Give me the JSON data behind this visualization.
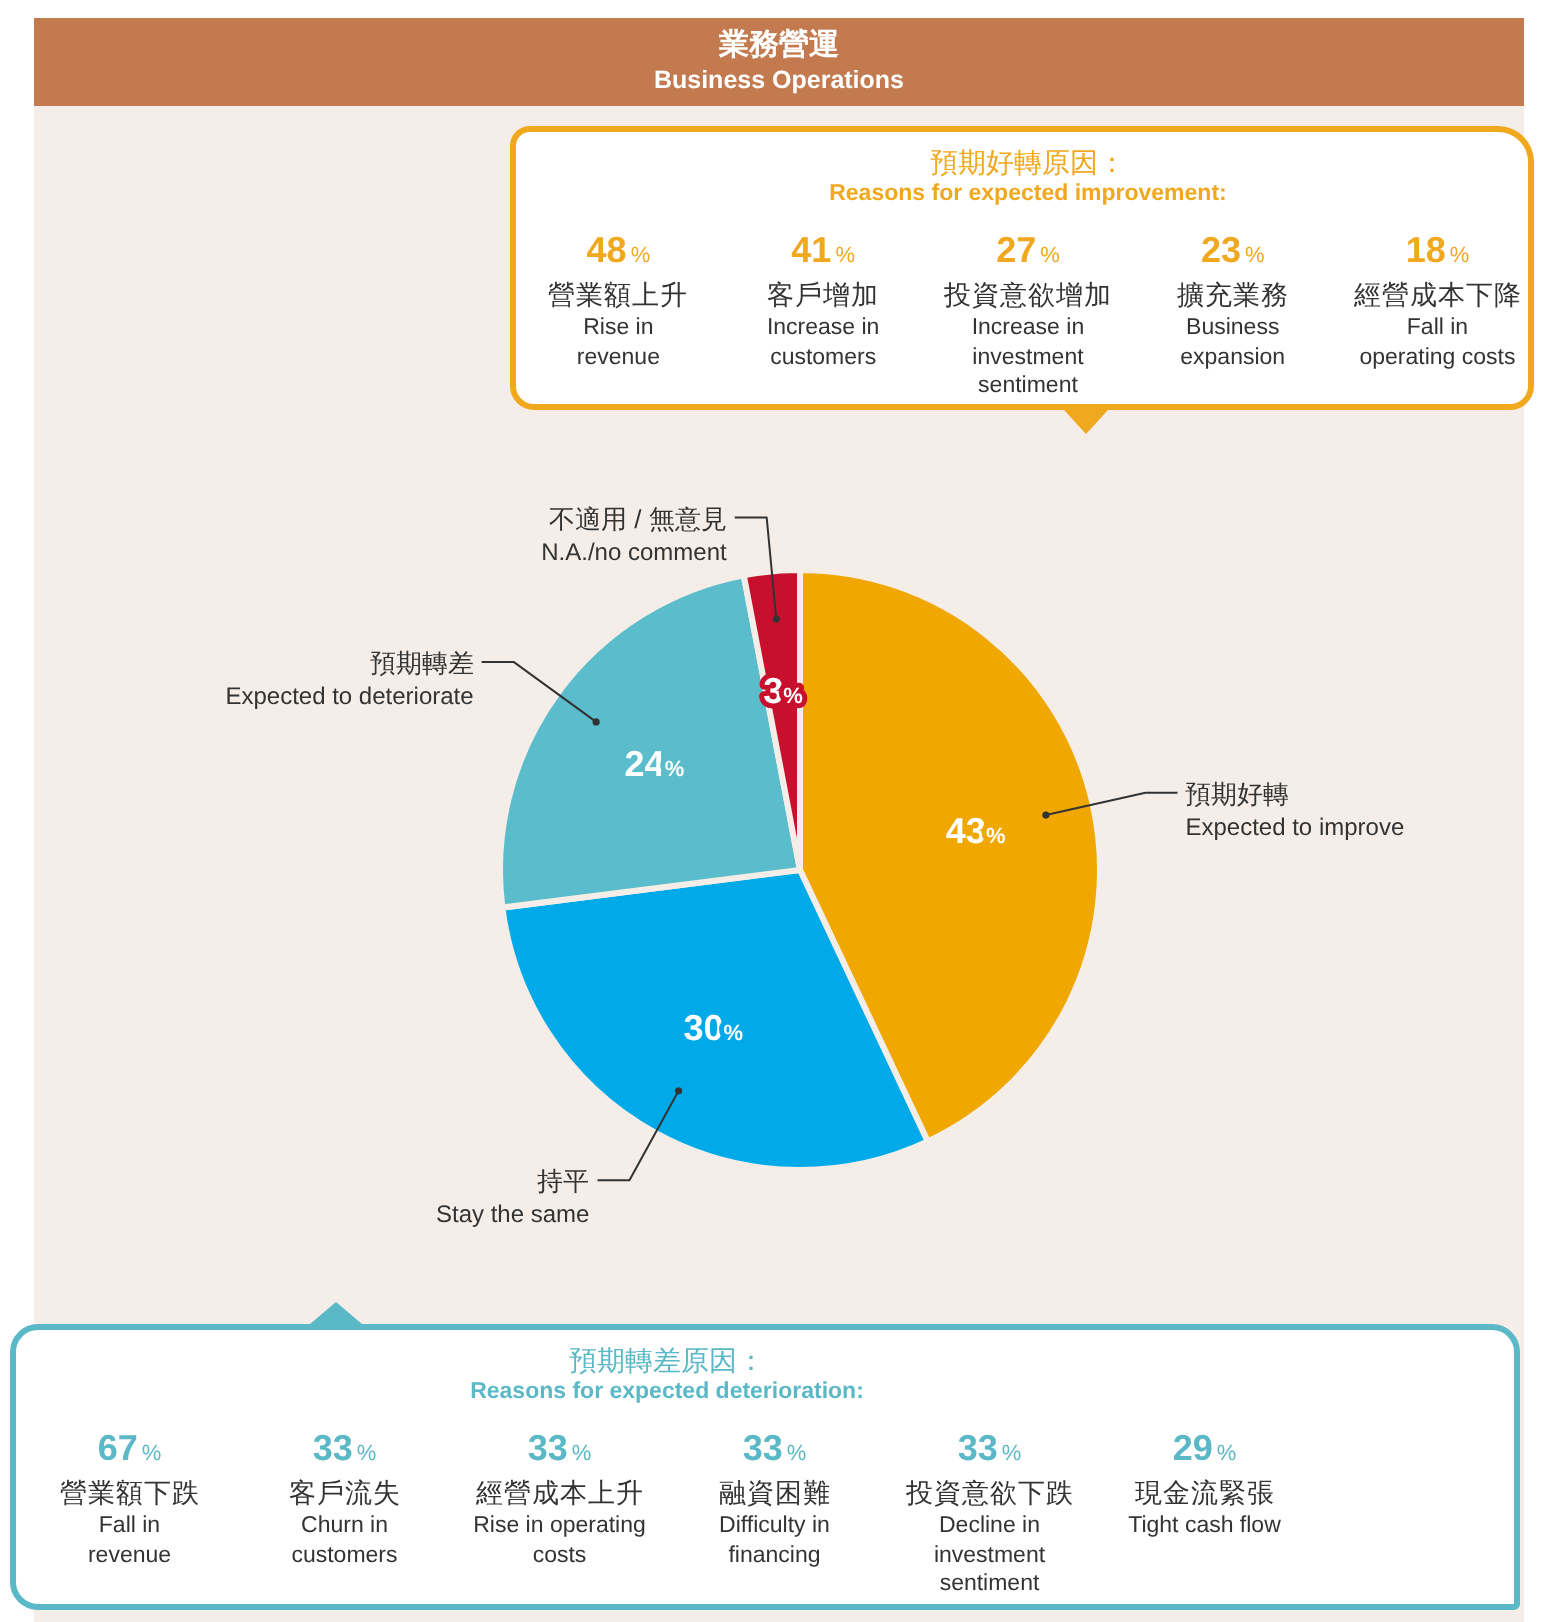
{
  "chart_data": [
    {
      "type": "pie",
      "title": "業務營運\nBusiness Operations",
      "categories": [
        "預期好轉\nExpected to improve",
        "持平\nStay the same",
        "預期轉差\nExpected to deteriorate",
        "不適用 / 無意見\nN.A./no comment"
      ],
      "values": [
        43,
        30,
        24,
        3
      ],
      "colors": [
        "#f0a800",
        "#00aae8",
        "#5bbccc",
        "#c8102e"
      ],
      "value_labels": [
        "43%",
        "30%",
        "24%",
        "3%"
      ]
    },
    {
      "type": "other",
      "title": "預期好轉原因：\nReasons for expected improvement:",
      "categories": [
        "營業額上升\nRise in\nrevenue",
        "客戶增加\nIncrease in\ncustomers",
        "投資意欲增加\nIncrease in\ninvestment\nsentiment",
        "擴充業務\nBusiness\nexpansion",
        "經營成本下降\nFall in\noperating costs"
      ],
      "values": [
        48,
        41,
        27,
        23,
        18
      ],
      "value_labels": [
        "48%",
        "41%",
        "27%",
        "23%",
        "18%"
      ],
      "color": "#f0a81e"
    },
    {
      "type": "other",
      "title": "預期轉差原因：\nReasons for expected deterioration:",
      "categories": [
        "營業額下跌\nFall in\nrevenue",
        "客戶流失\nChurn in\ncustomers",
        "經營成本上升\nRise in operating\ncosts",
        "融資困難\nDifficulty in\nfinancing",
        "投資意欲下跌\nDecline in\ninvestment\nsentiment",
        "現金流緊張\nTight cash flow"
      ],
      "values": [
        67,
        33,
        33,
        33,
        33,
        29
      ],
      "value_labels": [
        "67%",
        "33%",
        "33%",
        "33%",
        "33%",
        "29%"
      ],
      "color": "#5bb8c6"
    }
  ]
}
